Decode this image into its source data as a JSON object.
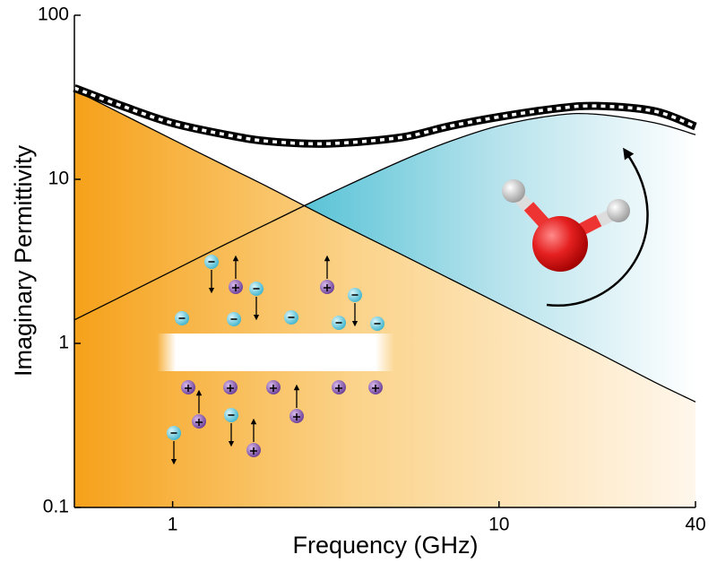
{
  "chart_data": {
    "type": "line",
    "xlabel": "Frequency (GHz)",
    "ylabel": "Imaginary Permittivity",
    "x": [
      0.5,
      0.7,
      1,
      1.5,
      2,
      3,
      5,
      7,
      10,
      15,
      20,
      30,
      40
    ],
    "series": [
      {
        "color": "#000000",
        "values": [
          35,
          25,
          17.5,
          11.7,
          8.8,
          5.8,
          3.5,
          2.5,
          1.75,
          1.17,
          0.88,
          0.58,
          0.44
        ]
      },
      {
        "color": "#000000",
        "values": [
          1.39,
          1.94,
          2.77,
          4.15,
          5.49,
          8.11,
          12.9,
          16.9,
          21.2,
          24.6,
          24.9,
          22.1,
          18.7
        ]
      },
      {
        "color": "#000000",
        "values": [
          36,
          28,
          22,
          18.5,
          17,
          16.5,
          18,
          21,
          24,
          27,
          28,
          26,
          21
        ]
      }
    ],
    "xlim": [
      0.5,
      40
    ],
    "ylim": [
      0.1,
      100
    ],
    "xticks": [
      1,
      10,
      40
    ],
    "yticks": [
      0.1,
      1,
      10,
      100
    ],
    "xscale": "log",
    "yscale": "log"
  }
}
